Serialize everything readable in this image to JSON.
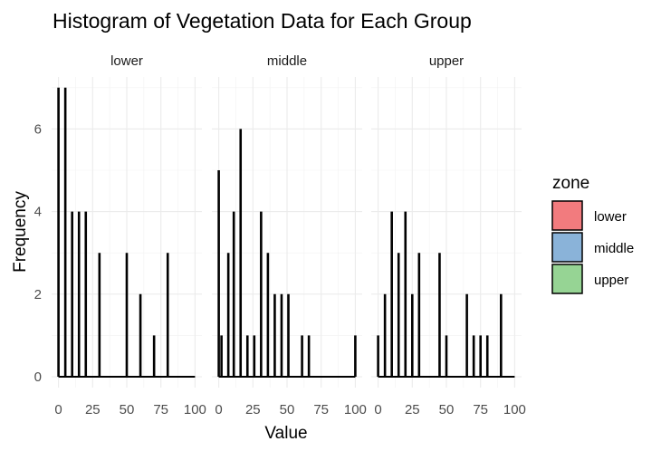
{
  "chart_data": {
    "type": "bar",
    "title": "Histogram of Vegetation Data for Each Group",
    "xlabel": "Value",
    "ylabel": "Frequency",
    "xlim": [
      0,
      100
    ],
    "ylim": [
      0,
      7
    ],
    "x_ticks": [
      "0",
      "25",
      "50",
      "75",
      "100"
    ],
    "y_ticks": [
      "0",
      "2",
      "4",
      "6"
    ],
    "grid": true,
    "legend": {
      "title": "zone",
      "position": "right",
      "entries": [
        {
          "label": "lower",
          "color": "#F27B7E"
        },
        {
          "label": "middle",
          "color": "#8AB3D9"
        },
        {
          "label": "upper",
          "color": "#96D494"
        }
      ]
    },
    "panels": [
      {
        "name": "lower",
        "bins": [
          {
            "x": 0,
            "count": 7
          },
          {
            "x": 5,
            "count": 7
          },
          {
            "x": 10,
            "count": 4
          },
          {
            "x": 15,
            "count": 4
          },
          {
            "x": 20,
            "count": 4
          },
          {
            "x": 30,
            "count": 3
          },
          {
            "x": 50,
            "count": 3
          },
          {
            "x": 60,
            "count": 2
          },
          {
            "x": 70,
            "count": 1
          },
          {
            "x": 80,
            "count": 3
          }
        ]
      },
      {
        "name": "middle",
        "bins": [
          {
            "x": 0,
            "count": 5
          },
          {
            "x": 2,
            "count": 1
          },
          {
            "x": 7,
            "count": 3
          },
          {
            "x": 11,
            "count": 4
          },
          {
            "x": 16,
            "count": 6
          },
          {
            "x": 21,
            "count": 1
          },
          {
            "x": 26,
            "count": 1
          },
          {
            "x": 31,
            "count": 4
          },
          {
            "x": 36,
            "count": 3
          },
          {
            "x": 41,
            "count": 2
          },
          {
            "x": 46,
            "count": 2
          },
          {
            "x": 51,
            "count": 2
          },
          {
            "x": 61,
            "count": 1
          },
          {
            "x": 66,
            "count": 1
          },
          {
            "x": 100,
            "count": 1
          }
        ]
      },
      {
        "name": "upper",
        "bins": [
          {
            "x": 0,
            "count": 1
          },
          {
            "x": 5,
            "count": 2
          },
          {
            "x": 10,
            "count": 4
          },
          {
            "x": 15,
            "count": 3
          },
          {
            "x": 20,
            "count": 4
          },
          {
            "x": 25,
            "count": 2
          },
          {
            "x": 30,
            "count": 3
          },
          {
            "x": 45,
            "count": 3
          },
          {
            "x": 50,
            "count": 1
          },
          {
            "x": 65,
            "count": 2
          },
          {
            "x": 70,
            "count": 1
          },
          {
            "x": 75,
            "count": 1
          },
          {
            "x": 80,
            "count": 1
          },
          {
            "x": 90,
            "count": 2
          }
        ]
      }
    ]
  }
}
